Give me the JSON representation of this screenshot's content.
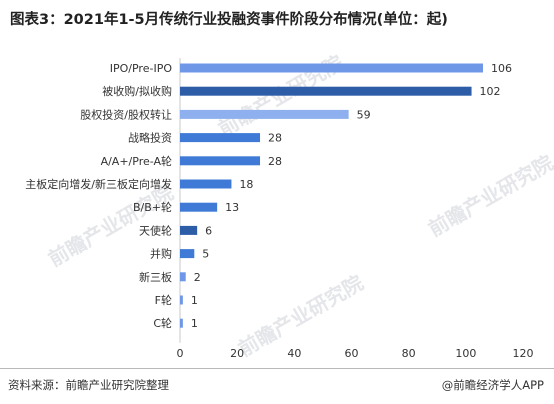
{
  "title": "图表3：2021年1-5月传统行业投融资事件阶段分布情况(单位：起)",
  "source": "资料来源：前瞻产业研究院整理",
  "credit": "@前瞻经济学人APP",
  "colors": {
    "light": "#6f97e8",
    "dark": "#2e5da8",
    "mid": "#3f7bd6",
    "axis": "#c8c8c8",
    "text": "#333333"
  },
  "chart_data": {
    "type": "bar",
    "orientation": "horizontal",
    "title": "",
    "xlabel": "",
    "ylabel": "",
    "xlim": [
      0,
      120
    ],
    "ticks": [
      0,
      20,
      40,
      60,
      80,
      100,
      120
    ],
    "grid": false,
    "legend": "none",
    "categories": [
      "IPO/Pre-IPO",
      "被收购/拟收购",
      "股权投资/股权转让",
      "战略投资",
      "A/A+/Pre-A轮",
      "主板定向增发/新三板定向增发",
      "B/B+轮",
      "天使轮",
      "并购",
      "新三板",
      "F轮",
      "C轮"
    ],
    "values": [
      106,
      102,
      59,
      28,
      28,
      18,
      13,
      6,
      5,
      2,
      1,
      1
    ],
    "bar_colors": [
      "#6f97e8",
      "#2e5da8",
      "#8fb0ee",
      "#3f7bd6",
      "#3f7bd6",
      "#3f7bd6",
      "#3f7bd6",
      "#2e5da8",
      "#3f7bd6",
      "#6f97e8",
      "#6f97e8",
      "#6f97e8"
    ]
  }
}
